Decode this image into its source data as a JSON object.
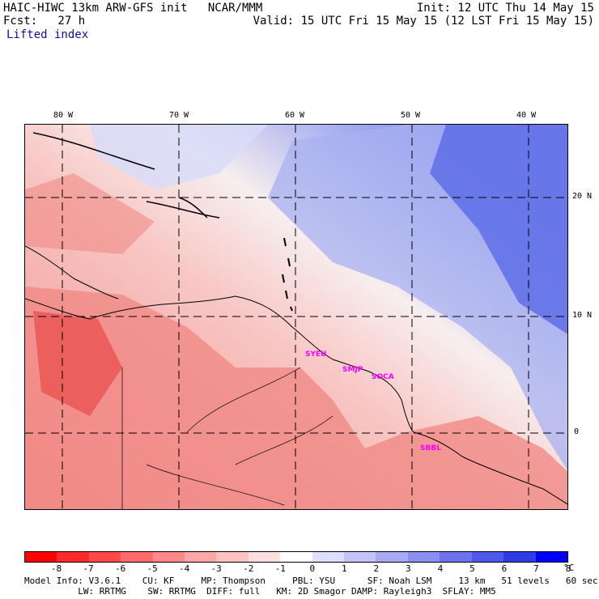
{
  "header": {
    "title": "HAIC-HIWC 13km ARW-GFS init   NCAR/MMM",
    "fcst": "Fcst:   27 h",
    "init": "Init: 12 UTC Thu 14 May 15",
    "valid": "Valid: 15 UTC Fri 15 May 15 (12 LST Fri 15 May 15)",
    "field": "Lifted index"
  },
  "map": {
    "lon_labels": [
      "80 W",
      "70 W",
      "60 W",
      "50 W",
      "40 W"
    ],
    "lat_labels": [
      "20 N",
      "10 N",
      "0"
    ],
    "stations": [
      "SYEU",
      "SMJP",
      "SOCA",
      "SBBL"
    ],
    "colors": {
      "strong_negative": "#e8504e",
      "negative": "#f08a86",
      "weak_negative": "#f8c6c4",
      "neutral": "#f7eeee",
      "weak_positive": "#d8dcf8",
      "positive": "#a8b0f0",
      "strong_positive": "#5a6ae6"
    }
  },
  "colorbar": {
    "colors": [
      "#ff0000",
      "#ff2a2a",
      "#ff4848",
      "#ff6a6a",
      "#ff8888",
      "#ffa6a6",
      "#ffc2c2",
      "#ffdede",
      "#ffffff",
      "#dedefe",
      "#c2c4fa",
      "#a6aaf6",
      "#8a8ff2",
      "#6c73ee",
      "#4e58ea",
      "#2f3ce6",
      "#0000ff"
    ],
    "labels": [
      "-8",
      "-7",
      "-6",
      "-5",
      "-4",
      "-3",
      "-2",
      "-1",
      "0",
      "1",
      "2",
      "3",
      "4",
      "5",
      "6",
      "7",
      "8"
    ],
    "unit": "°C"
  },
  "footer": {
    "line1": "Model Info: V3.6.1    CU: KF     MP: Thompson     PBL: YSU      SF: Noah LSM     13 km   51 levels   60 sec",
    "line2": "          LW: RRTMG    SW: RRTMG  DIFF: full   KM: 2D Smagor DAMP: Rayleigh3  SFLAY: MM5"
  }
}
